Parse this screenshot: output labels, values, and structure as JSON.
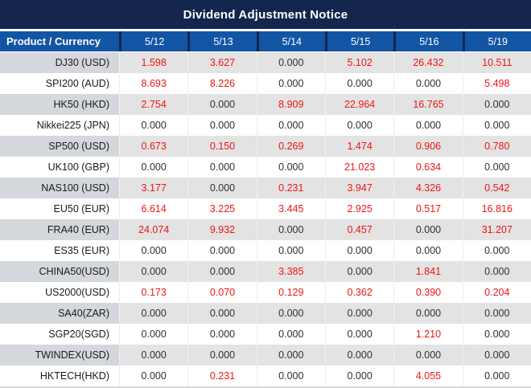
{
  "colors": {
    "title_bg": "#14264D",
    "header_bg": "#1355A5",
    "header_text": "#FFFFFF",
    "row_gray_bg": "#E3E3E3",
    "product_gray_bg": "#D4D7DC",
    "product_text": "#1A1A1A",
    "zero_text": "#2F2F2F",
    "nonzero_text": "#EE1515",
    "bottom_border": "#D8D8D8"
  },
  "chart_data": {
    "type": "table",
    "title": "Dividend Adjustment Notice",
    "columns": [
      "Product / Currency",
      "5/12",
      "5/13",
      "5/14",
      "5/15",
      "5/16",
      "5/19"
    ],
    "rows": [
      {
        "product": "DJ30 (USD)",
        "values": [
          "1.598",
          "3.627",
          "0.000",
          "5.102",
          "26.432",
          "10.511"
        ]
      },
      {
        "product": "SPI200 (AUD)",
        "values": [
          "8.693",
          "8.226",
          "0.000",
          "0.000",
          "0.000",
          "5.498"
        ]
      },
      {
        "product": "HK50 (HKD)",
        "values": [
          "2.754",
          "0.000",
          "8.909",
          "22.964",
          "16.765",
          "0.000"
        ]
      },
      {
        "product": "Nikkei225 (JPN)",
        "values": [
          "0.000",
          "0.000",
          "0.000",
          "0.000",
          "0.000",
          "0.000"
        ]
      },
      {
        "product": "SP500 (USD)",
        "values": [
          "0.673",
          "0.150",
          "0.269",
          "1.474",
          "0.906",
          "0.780"
        ]
      },
      {
        "product": "UK100 (GBP)",
        "values": [
          "0.000",
          "0.000",
          "0.000",
          "21.023",
          "0.634",
          "0.000"
        ]
      },
      {
        "product": "NAS100 (USD)",
        "values": [
          "3.177",
          "0.000",
          "0.231",
          "3.947",
          "4.326",
          "0.542"
        ]
      },
      {
        "product": "EU50 (EUR)",
        "values": [
          "6.614",
          "3.225",
          "3.445",
          "2.925",
          "0.517",
          "16.816"
        ]
      },
      {
        "product": "FRA40 (EUR)",
        "values": [
          "24.074",
          "9.932",
          "0.000",
          "0.457",
          "0.000",
          "31.207"
        ]
      },
      {
        "product": "ES35 (EUR)",
        "values": [
          "0.000",
          "0.000",
          "0.000",
          "0.000",
          "0.000",
          "0.000"
        ]
      },
      {
        "product": "CHINA50(USD)",
        "values": [
          "0.000",
          "0.000",
          "3.385",
          "0.000",
          "1.841",
          "0.000"
        ]
      },
      {
        "product": "US2000(USD)",
        "values": [
          "0.173",
          "0.070",
          "0.129",
          "0.362",
          "0.390",
          "0.204"
        ]
      },
      {
        "product": "SA40(ZAR)",
        "values": [
          "0.000",
          "0.000",
          "0.000",
          "0.000",
          "0.000",
          "0.000"
        ]
      },
      {
        "product": "SGP20(SGD)",
        "values": [
          "0.000",
          "0.000",
          "0.000",
          "0.000",
          "1.210",
          "0.000"
        ]
      },
      {
        "product": "TWINDEX(USD)",
        "values": [
          "0.000",
          "0.000",
          "0.000",
          "0.000",
          "0.000",
          "0.000"
        ]
      },
      {
        "product": "HKTECH(HKD)",
        "values": [
          "0.000",
          "0.231",
          "0.000",
          "0.000",
          "4.055",
          "0.000"
        ]
      }
    ]
  }
}
